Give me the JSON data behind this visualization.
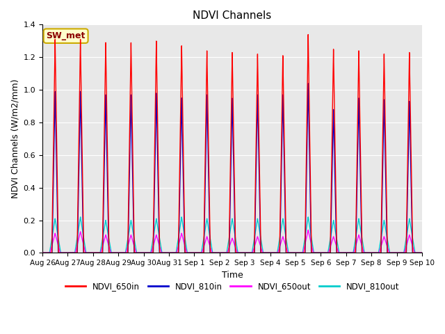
{
  "title": "NDVI Channels",
  "xlabel": "Time",
  "ylabel": "NDVI Channels (W/m2/mm)",
  "ylim": [
    0,
    1.4
  ],
  "yticks": [
    0.0,
    0.2,
    0.4,
    0.6,
    0.8,
    1.0,
    1.2,
    1.4
  ],
  "annotation": "SW_met",
  "annotation_color": "#8B0000",
  "annotation_bg": "#FFFFCC",
  "annotation_border": "#CCAA00",
  "colors": {
    "NDVI_650in": "#FF0000",
    "NDVI_810in": "#0000CC",
    "NDVI_650out": "#FF00FF",
    "NDVI_810out": "#00CCCC"
  },
  "linewidths": {
    "NDVI_650in": 1.0,
    "NDVI_810in": 1.0,
    "NDVI_650out": 1.0,
    "NDVI_810out": 1.0
  },
  "peak_650in": [
    1.31,
    1.31,
    1.29,
    1.29,
    1.3,
    1.27,
    1.24,
    1.23,
    1.22,
    1.21,
    1.34,
    1.25,
    1.24,
    1.22,
    1.23
  ],
  "peak_810in": [
    0.99,
    0.99,
    0.97,
    0.97,
    0.98,
    0.95,
    0.97,
    0.95,
    0.97,
    0.97,
    1.04,
    0.88,
    0.95,
    0.94,
    0.93
  ],
  "peak_650out": [
    0.12,
    0.13,
    0.11,
    0.11,
    0.11,
    0.12,
    0.1,
    0.09,
    0.1,
    0.1,
    0.14,
    0.1,
    0.11,
    0.1,
    0.11
  ],
  "peak_810out": [
    0.21,
    0.22,
    0.2,
    0.2,
    0.21,
    0.22,
    0.21,
    0.21,
    0.21,
    0.21,
    0.22,
    0.2,
    0.21,
    0.2,
    0.21
  ],
  "tick_labels": [
    "Aug 26",
    "Aug 27",
    "Aug 28",
    "Aug 29",
    "Aug 30",
    "Aug 31",
    "Sep 1",
    "Sep 2",
    "Sep 3",
    "Sep 4",
    "Sep 5",
    "Sep 6",
    "Sep 7",
    "Sep 8",
    "Sep 9",
    "Sep 10"
  ],
  "background_color": "#E8E8E8",
  "grid_color": "#FFFFFF",
  "fig_bg": "#FFFFFF"
}
